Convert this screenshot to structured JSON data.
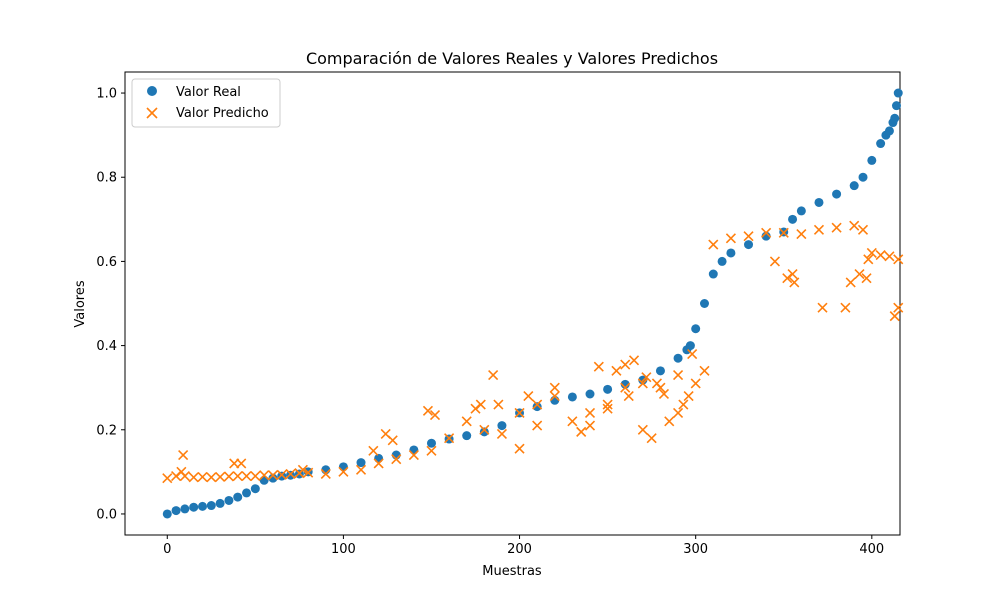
{
  "colors": {
    "real": "#1f77b4",
    "predicted": "#ff7f0e",
    "axis": "#000000",
    "legend_border": "#cccccc"
  },
  "chart_data": {
    "type": "scatter",
    "title": "Comparación de Valores Reales y Valores Predichos",
    "xlabel": "Muestras",
    "ylabel": "Valores",
    "xlim": [
      -24,
      416
    ],
    "ylim": [
      -0.05,
      1.05
    ],
    "xticks": [
      0,
      100,
      200,
      300,
      400
    ],
    "yticks": [
      0.0,
      0.2,
      0.4,
      0.6,
      0.8,
      1.0
    ],
    "xtick_labels": [
      "0",
      "100",
      "200",
      "300",
      "400"
    ],
    "ytick_labels": [
      "0.0",
      "0.2",
      "0.4",
      "0.6",
      "0.8",
      "1.0"
    ],
    "grid": false,
    "legend": "upper-left",
    "n_samples": 416,
    "series": [
      {
        "name": "Valor Real",
        "marker": "circle",
        "color": "#1f77b4",
        "x": [
          0,
          5,
          10,
          15,
          20,
          25,
          30,
          35,
          40,
          45,
          50,
          55,
          60,
          65,
          70,
          75,
          80,
          90,
          100,
          110,
          120,
          130,
          140,
          150,
          160,
          170,
          180,
          190,
          200,
          210,
          220,
          230,
          240,
          250,
          260,
          270,
          280,
          290,
          295,
          297,
          300,
          305,
          310,
          315,
          320,
          330,
          340,
          350,
          355,
          360,
          370,
          380,
          390,
          395,
          400,
          405,
          408,
          410,
          412,
          413,
          414,
          415
        ],
        "y": [
          0.0,
          0.008,
          0.012,
          0.016,
          0.018,
          0.02,
          0.025,
          0.032,
          0.04,
          0.05,
          0.06,
          0.08,
          0.085,
          0.09,
          0.092,
          0.095,
          0.1,
          0.105,
          0.112,
          0.122,
          0.132,
          0.14,
          0.152,
          0.168,
          0.178,
          0.186,
          0.195,
          0.21,
          0.24,
          0.255,
          0.27,
          0.278,
          0.285,
          0.296,
          0.308,
          0.318,
          0.34,
          0.37,
          0.39,
          0.4,
          0.44,
          0.5,
          0.57,
          0.6,
          0.62,
          0.64,
          0.66,
          0.67,
          0.7,
          0.72,
          0.74,
          0.76,
          0.78,
          0.8,
          0.84,
          0.88,
          0.9,
          0.91,
          0.93,
          0.94,
          0.97,
          1.0
        ]
      },
      {
        "name": "Valor Predicho",
        "marker": "x",
        "color": "#ff7f0e",
        "x": [
          0,
          5,
          10,
          15,
          20,
          25,
          30,
          35,
          40,
          45,
          50,
          55,
          60,
          65,
          70,
          75,
          80,
          90,
          100,
          110,
          120,
          130,
          140,
          150,
          160,
          170,
          180,
          190,
          200,
          210,
          220,
          230,
          240,
          250,
          260,
          270,
          280,
          290,
          300,
          305,
          310,
          320,
          330,
          340,
          350,
          360,
          370,
          380,
          390,
          395,
          400,
          405,
          410,
          415,
          8,
          9,
          38,
          42,
          77,
          117,
          124,
          128,
          148,
          152,
          175,
          178,
          185,
          188,
          200,
          205,
          210,
          220,
          235,
          240,
          245,
          250,
          255,
          260,
          262,
          265,
          270,
          272,
          275,
          278,
          282,
          285,
          290,
          293,
          296,
          298,
          345,
          352,
          355,
          356,
          372,
          385,
          388,
          393,
          397,
          398,
          413,
          415
        ],
        "y": [
          0.085,
          0.09,
          0.09,
          0.087,
          0.088,
          0.087,
          0.088,
          0.089,
          0.09,
          0.09,
          0.09,
          0.092,
          0.092,
          0.093,
          0.095,
          0.097,
          0.098,
          0.095,
          0.1,
          0.105,
          0.12,
          0.13,
          0.14,
          0.15,
          0.18,
          0.22,
          0.2,
          0.19,
          0.24,
          0.26,
          0.28,
          0.22,
          0.24,
          0.26,
          0.3,
          0.31,
          0.3,
          0.24,
          0.31,
          0.34,
          0.64,
          0.655,
          0.66,
          0.668,
          0.668,
          0.665,
          0.675,
          0.68,
          0.685,
          0.675,
          0.62,
          0.615,
          0.612,
          0.605,
          0.1,
          0.14,
          0.12,
          0.12,
          0.105,
          0.15,
          0.19,
          0.175,
          0.245,
          0.235,
          0.25,
          0.26,
          0.33,
          0.26,
          0.155,
          0.28,
          0.21,
          0.3,
          0.195,
          0.21,
          0.35,
          0.25,
          0.34,
          0.355,
          0.28,
          0.365,
          0.2,
          0.325,
          0.18,
          0.31,
          0.285,
          0.22,
          0.33,
          0.26,
          0.28,
          0.38,
          0.6,
          0.56,
          0.57,
          0.55,
          0.49,
          0.49,
          0.55,
          0.57,
          0.56,
          0.605,
          0.47,
          0.49
        ]
      }
    ]
  }
}
